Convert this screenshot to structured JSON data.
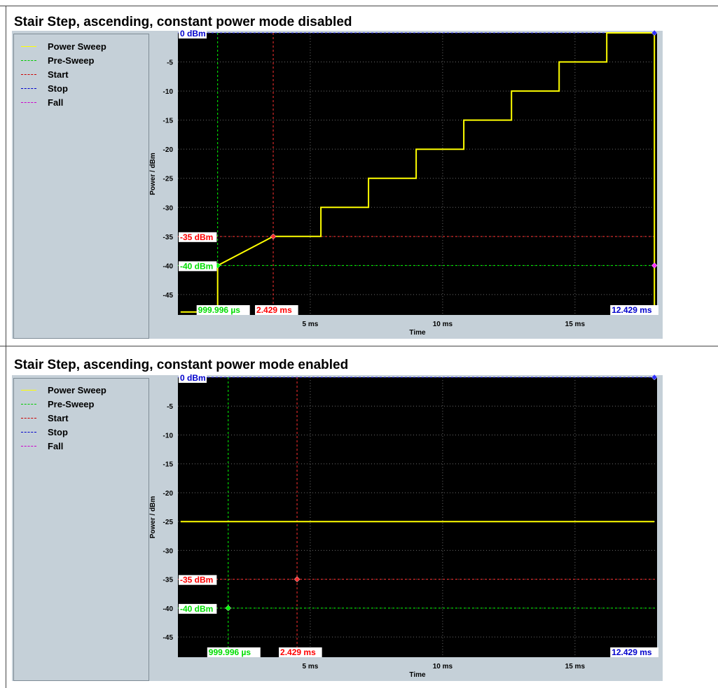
{
  "legend": {
    "items": [
      {
        "label": "Power Sweep",
        "color": "#ffff00",
        "style": "solid"
      },
      {
        "label": "Pre-Sweep",
        "color": "#00cc00",
        "style": "dashed"
      },
      {
        "label": "Start",
        "color": "#cc0000",
        "style": "dashed"
      },
      {
        "label": "Stop",
        "color": "#0000cc",
        "style": "dashed"
      },
      {
        "label": "Fall",
        "color": "#cc00cc",
        "style": "dashed"
      }
    ]
  },
  "colors": {
    "plot_background": "#000000",
    "panel_background": "#c5d0d8",
    "power_sweep": "#ffff00",
    "pre_sweep": "#00ff00",
    "start": "#ff3030",
    "stop": "#3030ff",
    "fall": "#ff30ff",
    "grid": "#6a6a6a"
  },
  "chart_data": [
    {
      "type": "line",
      "title": "Stair Step, ascending, constant power mode disabled",
      "xlabel": "Time",
      "ylabel": "Power / dBm",
      "xlim": [
        0,
        18.1
      ],
      "ylim": [
        -48.5,
        0
      ],
      "x_ticks": [
        5,
        10,
        15
      ],
      "x_tick_labels": [
        "5 ms",
        "10 ms",
        "15 ms"
      ],
      "y_ticks": [
        -5,
        -10,
        -15,
        -20,
        -25,
        -30,
        -35,
        -40,
        -45
      ],
      "y_tick_labels": [
        "-5",
        "-10",
        "-15",
        "-20",
        "-25",
        "-30",
        "-35",
        "-40",
        "-45"
      ],
      "grid": true,
      "legend_position": "left",
      "series": [
        {
          "name": "Power Sweep",
          "x": [
            0.1,
            1.5,
            1.5,
            3.6,
            5.4,
            5.4,
            7.2,
            7.2,
            9.0,
            9.0,
            10.8,
            10.8,
            12.6,
            12.6,
            14.4,
            14.4,
            16.2,
            16.2,
            18.0,
            18.0
          ],
          "y": [
            -48,
            -48,
            -40,
            -35,
            -35,
            -30,
            -30,
            -25,
            -25,
            -20,
            -20,
            -15,
            -15,
            -10,
            -10,
            -5,
            -5,
            0,
            0,
            -48
          ]
        }
      ],
      "markers": {
        "pre_sweep": {
          "x": 1.5,
          "y": -40,
          "time_label": "999.996 µs",
          "level_label": "-40 dBm"
        },
        "start": {
          "x": 3.6,
          "y": -35,
          "time_label": "2.429 ms",
          "level_label": "-35 dBm"
        },
        "stop": {
          "x": 18.0,
          "y": 0,
          "time_label": "12.429 ms",
          "level_label": "0 dBm"
        },
        "fall": {
          "x": 18.0,
          "y": -40
        }
      }
    },
    {
      "type": "line",
      "title": "Stair Step, ascending, constant power mode enabled",
      "xlabel": "Time",
      "ylabel": "Power / dBm",
      "xlim": [
        0,
        18.1
      ],
      "ylim": [
        -48.5,
        0
      ],
      "x_ticks": [
        5,
        10,
        15
      ],
      "x_tick_labels": [
        "5 ms",
        "10 ms",
        "15 ms"
      ],
      "y_ticks": [
        -5,
        -10,
        -15,
        -20,
        -25,
        -30,
        -35,
        -40,
        -45
      ],
      "y_tick_labels": [
        "-5",
        "-10",
        "-15",
        "-20",
        "-25",
        "-30",
        "-35",
        "-40",
        "-45"
      ],
      "grid": true,
      "legend_position": "left",
      "series": [
        {
          "name": "Power Sweep",
          "x": [
            0.1,
            18.0
          ],
          "y": [
            -25,
            -25
          ]
        }
      ],
      "markers": {
        "pre_sweep": {
          "x": 1.9,
          "y": -40,
          "time_label": "999.996 µs",
          "level_label": "-40 dBm"
        },
        "start": {
          "x": 4.5,
          "y": -35,
          "time_label": "2.429 ms",
          "level_label": "-35 dBm"
        },
        "stop": {
          "x": 18.0,
          "y": 0,
          "time_label": "12.429 ms",
          "level_label": "0 dBm"
        },
        "fall": null
      }
    }
  ]
}
